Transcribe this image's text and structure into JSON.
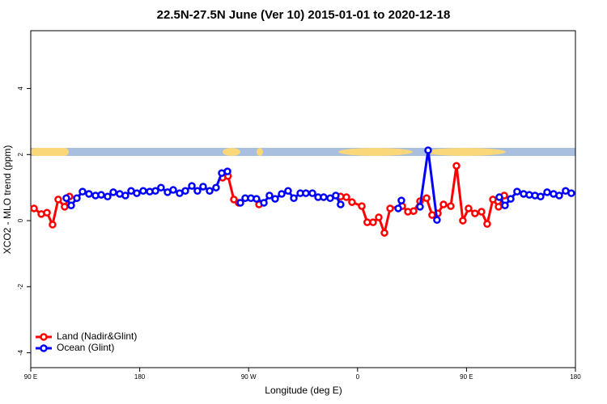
{
  "chart_data": {
    "type": "line",
    "title": "22.5N-27.5N June (Ver 10)   2015-01-01 to 2020-12-18",
    "x_label": "Longitude (deg E)",
    "y_label": "XCO2 - MLO trend (ppm)",
    "xlim": [
      90,
      540
    ],
    "xticks": [
      {
        "value": 90,
        "label": "90 E"
      },
      180,
      {
        "value": 270,
        "label": "90 W"
      },
      {
        "value": 360,
        "label": "0"
      },
      {
        "value": 450,
        "label": "90 E"
      },
      {
        "value": 540,
        "label": "180"
      }
    ],
    "ylim": [
      -4.45,
      5.75
    ],
    "yticks": [
      -4,
      -2,
      0,
      2,
      4
    ],
    "legend": "bottomleft",
    "series": [
      {
        "name": "Land (Nadir&Glint)",
        "color": "#ff0000",
        "x": [
          92.7,
          98.7,
          103.4,
          108,
          112.7,
          118,
          122,
          null,
          248.5,
          253,
          257.8,
          261.8,
          null,
          278.6,
          null,
          346,
          350.8,
          355.4,
          363.5,
          368,
          372.8,
          377.5,
          382.2,
          386.9,
          396.9,
          401.6,
          406.3,
          411.6,
          417,
          421.6,
          426.3,
          431,
          437,
          441.7,
          447,
          451.7,
          457,
          462.4,
          467.1,
          471.8,
          476.5,
          481.2
        ],
        "values": [
          0.37,
          0.2,
          0.24,
          -0.12,
          0.64,
          0.42,
          0.73,
          null,
          1.3,
          1.35,
          0.64,
          0.54,
          null,
          0.49,
          null,
          0.73,
          0.71,
          0.56,
          0.44,
          -0.05,
          -0.05,
          0.1,
          -0.37,
          0.37,
          0.44,
          0.27,
          0.29,
          0.59,
          0.68,
          0.17,
          0.22,
          0.49,
          0.44,
          1.66,
          0,
          0.37,
          0.22,
          0.27,
          -0.1,
          0.64,
          0.42,
          0.76
        ]
      },
      {
        "name": "Ocean (Glint)",
        "color": "#0000ff",
        "x": [
          119.4,
          123.4,
          128.1,
          132.8,
          138.1,
          143.5,
          148.2,
          153.5,
          158.2,
          163.5,
          168.2,
          172.9,
          177.6,
          182.9,
          188.3,
          193,
          197.6,
          203,
          207.7,
          213,
          217.7,
          223.1,
          227.7,
          232.4,
          237.8,
          243.1,
          247.8,
          252.5,
          null,
          263.2,
          267.2,
          271.9,
          276.5,
          282.6,
          287.2,
          291.9,
          297.3,
          302.6,
          307.3,
          312.7,
          317.3,
          322.7,
          327.4,
          332,
          337.4,
          342,
          346,
          null,
          393.6,
          396.2,
          null,
          411.6,
          418.3,
          425.6,
          null,
          477.1,
          481.8,
          486.5,
          491.8,
          497.2,
          501.9,
          506.6,
          511.2,
          516.6,
          521.9,
          526.6,
          531.9,
          536.6
        ],
        "values": [
          0.68,
          0.46,
          0.68,
          0.88,
          0.81,
          0.76,
          0.78,
          0.73,
          0.86,
          0.81,
          0.76,
          0.9,
          0.83,
          0.9,
          0.88,
          0.9,
          1.0,
          0.86,
          0.93,
          0.83,
          0.9,
          1.05,
          0.9,
          1.03,
          0.9,
          1.0,
          1.44,
          1.49,
          null,
          0.54,
          0.68,
          0.68,
          0.66,
          0.54,
          0.76,
          0.66,
          0.81,
          0.9,
          0.68,
          0.83,
          0.83,
          0.83,
          0.71,
          0.71,
          0.68,
          0.76,
          0.49,
          null,
          0.37,
          0.61,
          null,
          0.42,
          2.13,
          0.02,
          null,
          0.71,
          0.46,
          0.66,
          0.88,
          0.81,
          0.78,
          0.76,
          0.73,
          0.86,
          0.81,
          0.76,
          0.9,
          0.83
        ]
      }
    ]
  }
}
